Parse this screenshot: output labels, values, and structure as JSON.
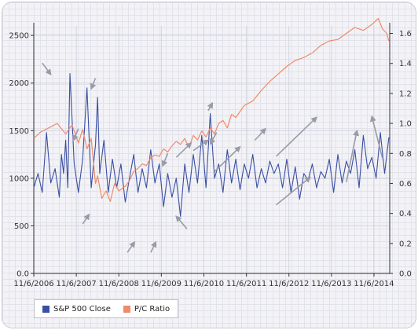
{
  "chart_data": {
    "type": "line",
    "x_tick_labels": [
      "11/6/2006",
      "11/6/2007",
      "11/6/2008",
      "11/6/2009",
      "11/6/2010",
      "11/6/2011",
      "11/6/2012",
      "11/6/2013",
      "11/6/2014"
    ],
    "y_left": {
      "ticks": [
        "0.0",
        "500",
        "1000",
        "1500",
        "2000",
        "2500"
      ],
      "ylim": [
        0,
        2600
      ]
    },
    "y_right": {
      "ticks": [
        "0.0",
        "0.2",
        "0.4",
        "0.6",
        "0.8",
        "1.0",
        "1.2",
        "1.4",
        "1.6"
      ],
      "ylim": [
        0,
        1.65
      ]
    },
    "grid": true,
    "legend": "bottom-left",
    "series": [
      {
        "name": "S&P 500 Close",
        "axis": "left",
        "color": "#3a4fa3",
        "x": [
          2006.85,
          2006.95,
          2007.05,
          2007.15,
          2007.25,
          2007.35,
          2007.45,
          2007.5,
          2007.55,
          2007.6,
          2007.65,
          2007.7,
          2007.8,
          2007.9,
          2008.0,
          2008.1,
          2008.2,
          2008.3,
          2008.35,
          2008.4,
          2008.5,
          2008.6,
          2008.7,
          2008.8,
          2008.9,
          2009.0,
          2009.1,
          2009.2,
          2009.3,
          2009.4,
          2009.5,
          2009.6,
          2009.7,
          2009.8,
          2009.9,
          2010.0,
          2010.1,
          2010.2,
          2010.3,
          2010.4,
          2010.5,
          2010.6,
          2010.7,
          2010.8,
          2010.9,
          2011.0,
          2011.1,
          2011.2,
          2011.3,
          2011.4,
          2011.5,
          2011.6,
          2011.7,
          2011.8,
          2011.9,
          2012.0,
          2012.1,
          2012.2,
          2012.3,
          2012.4,
          2012.5,
          2012.6,
          2012.7,
          2012.8,
          2012.9,
          2013.0,
          2013.1,
          2013.2,
          2013.3,
          2013.4,
          2013.5,
          2013.6,
          2013.7,
          2013.8,
          2013.9,
          2014.0,
          2014.1,
          2014.2,
          2014.3,
          2014.4,
          2014.5,
          2014.6,
          2014.7,
          2014.8,
          2014.9,
          2015.0,
          2015.1,
          2015.2
        ],
        "values": [
          900,
          1050,
          850,
          1480,
          950,
          1100,
          800,
          1250,
          1050,
          1400,
          900,
          2100,
          1150,
          850,
          1200,
          1950,
          900,
          1350,
          1850,
          1050,
          1400,
          850,
          1200,
          900,
          1150,
          750,
          1000,
          1250,
          850,
          1100,
          900,
          1300,
          950,
          1150,
          700,
          1050,
          800,
          1000,
          600,
          1150,
          850,
          1250,
          950,
          1450,
          900,
          1680,
          1000,
          1150,
          850,
          1300,
          950,
          1200,
          880,
          1150,
          1000,
          1250,
          900,
          1100,
          950,
          1180,
          1050,
          1150,
          900,
          1200,
          850,
          1120,
          780,
          1050,
          980,
          1150,
          900,
          1070,
          1000,
          1200,
          850,
          1250,
          950,
          1180,
          1050,
          1300,
          900,
          1450,
          1100,
          1220,
          1000,
          1480,
          1050,
          1430
        ]
      },
      {
        "name": "P/C Ratio",
        "axis": "right",
        "color": "#f08a6a",
        "x": [
          2006.85,
          2007.0,
          2007.2,
          2007.4,
          2007.6,
          2007.75,
          2007.9,
          2008.0,
          2008.1,
          2008.2,
          2008.3,
          2008.35,
          2008.45,
          2008.55,
          2008.65,
          2008.75,
          2008.85,
          2009.0,
          2009.1,
          2009.2,
          2009.3,
          2009.4,
          2009.5,
          2009.6,
          2009.7,
          2009.8,
          2009.9,
          2010.0,
          2010.1,
          2010.2,
          2010.3,
          2010.4,
          2010.5,
          2010.6,
          2010.7,
          2010.8,
          2010.9,
          2011.0,
          2011.1,
          2011.2,
          2011.3,
          2011.4,
          2011.5,
          2011.6,
          2011.8,
          2012.0,
          2012.2,
          2012.4,
          2012.6,
          2012.8,
          2013.0,
          2013.2,
          2013.4,
          2013.6,
          2013.8,
          2014.0,
          2014.2,
          2014.4,
          2014.6,
          2014.8,
          2014.95,
          2015.05,
          2015.15,
          2015.2
        ],
        "values": [
          0.9,
          0.94,
          0.97,
          1.0,
          0.93,
          0.99,
          0.87,
          0.96,
          0.83,
          0.9,
          0.6,
          0.65,
          0.5,
          0.55,
          0.48,
          0.6,
          0.55,
          0.58,
          0.62,
          0.68,
          0.7,
          0.73,
          0.72,
          0.77,
          0.79,
          0.78,
          0.83,
          0.81,
          0.85,
          0.88,
          0.86,
          0.9,
          0.84,
          0.92,
          0.89,
          0.95,
          0.91,
          0.97,
          0.93,
          1.0,
          1.02,
          0.97,
          1.06,
          1.04,
          1.12,
          1.15,
          1.22,
          1.28,
          1.33,
          1.38,
          1.42,
          1.44,
          1.47,
          1.52,
          1.55,
          1.56,
          1.6,
          1.64,
          1.62,
          1.66,
          1.7,
          1.63,
          1.6,
          1.55
        ]
      }
    ],
    "annotations": [
      {
        "type": "arrow",
        "from": [
          2007.05,
          2210
        ],
        "to": [
          2007.25,
          2090
        ]
      },
      {
        "type": "arrow",
        "from": [
          2007.9,
          1520
        ],
        "to": [
          2007.78,
          1400
        ]
      },
      {
        "type": "arrow",
        "from": [
          2008.3,
          2050
        ],
        "to": [
          2008.2,
          1940
        ]
      },
      {
        "type": "arrow",
        "from": [
          2008.0,
          520
        ],
        "to": [
          2008.15,
          620
        ]
      },
      {
        "type": "arrow",
        "from": [
          2009.05,
          220
        ],
        "to": [
          2009.22,
          330
        ]
      },
      {
        "type": "arrow",
        "from": [
          2009.6,
          220
        ],
        "to": [
          2009.72,
          330
        ]
      },
      {
        "type": "arrow",
        "from": [
          2010.45,
          470
        ],
        "to": [
          2010.2,
          600
        ]
      },
      {
        "type": "arrow",
        "from": [
          2010.0,
          1260
        ],
        "to": [
          2009.88,
          1130
        ]
      },
      {
        "type": "arrow",
        "from": [
          2010.2,
          1220
        ],
        "to": [
          2010.55,
          1370
        ]
      },
      {
        "type": "arrow",
        "from": [
          2010.6,
          1290
        ],
        "to": [
          2010.95,
          1400
        ]
      },
      {
        "type": "arrow",
        "from": [
          2011.15,
          1480
        ],
        "to": [
          2011.0,
          1360
        ]
      },
      {
        "type": "arrow",
        "from": [
          2010.95,
          1710
        ],
        "to": [
          2011.05,
          1790
        ]
      },
      {
        "type": "arrow",
        "from": [
          2011.1,
          1070
        ],
        "to": [
          2011.7,
          1330
        ]
      },
      {
        "type": "arrow",
        "from": [
          2012.05,
          1400
        ],
        "to": [
          2012.3,
          1520
        ]
      },
      {
        "type": "arrow",
        "from": [
          2012.55,
          1230
        ],
        "to": [
          2013.5,
          1640
        ]
      },
      {
        "type": "arrow",
        "from": [
          2012.55,
          720
        ],
        "to": [
          2013.35,
          1010
        ]
      },
      {
        "type": "arrow",
        "from": [
          2014.2,
          960
        ],
        "to": [
          2014.45,
          1500
        ]
      },
      {
        "type": "arrow",
        "from": [
          2015.05,
          1210
        ],
        "to": [
          2014.8,
          1650
        ]
      }
    ]
  }
}
